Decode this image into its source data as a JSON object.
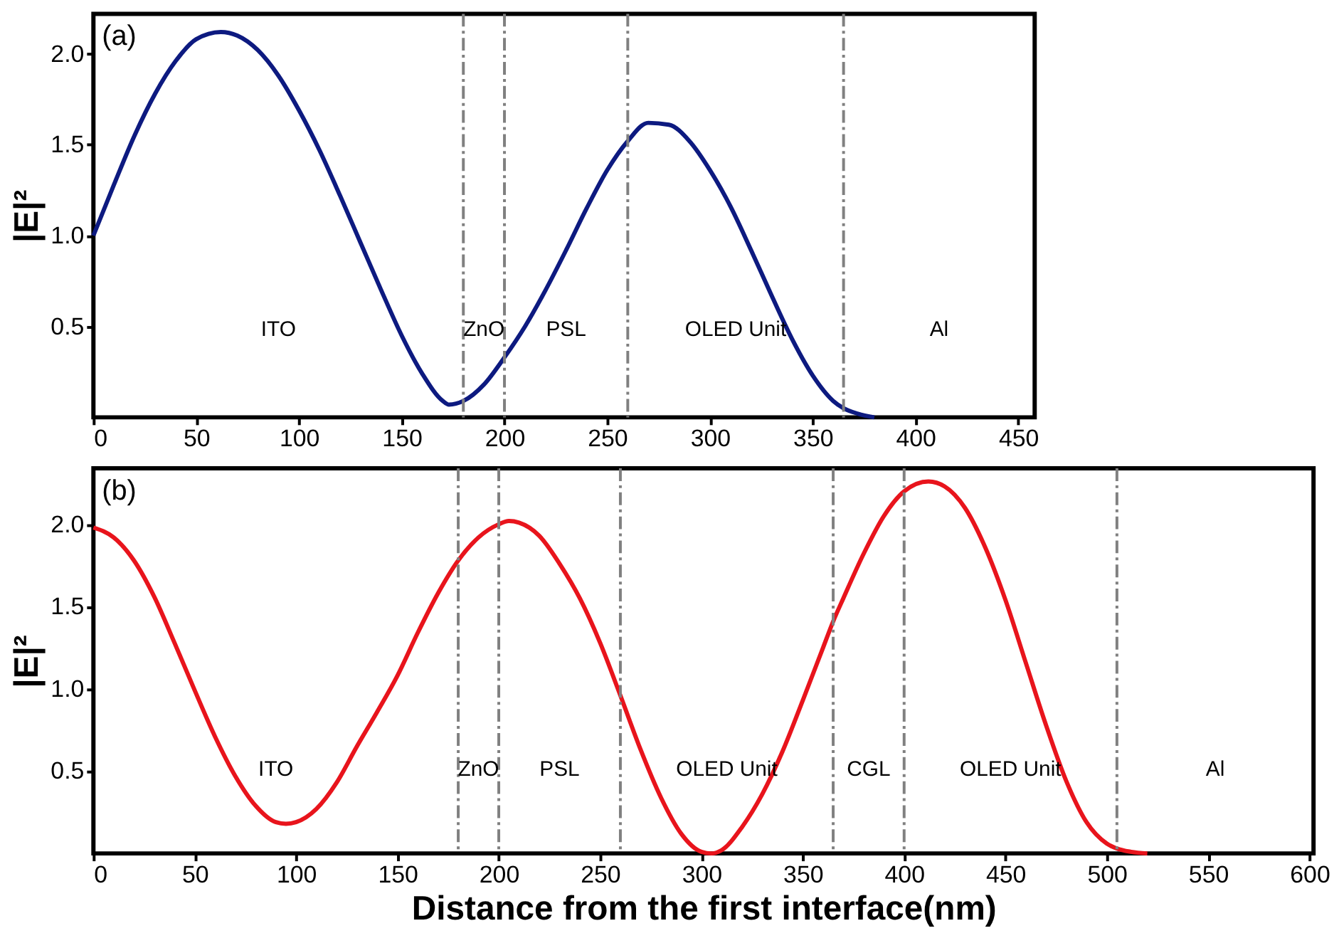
{
  "chart_data": [
    {
      "type": "line",
      "ylabel": "|E|²",
      "annotations": [
        "(a)",
        "ITO",
        "ZnO",
        "PSL",
        "OLED Unit",
        "Al"
      ],
      "x": [
        0,
        10,
        20,
        30,
        40,
        50,
        62,
        70,
        80,
        90,
        100,
        110,
        120,
        130,
        140,
        150,
        160,
        170,
        173,
        180,
        190,
        200,
        210,
        220,
        230,
        240,
        250,
        260,
        270,
        280,
        290,
        300,
        310,
        320,
        330,
        340,
        350,
        360,
        365,
        372,
        380
      ],
      "series": [
        {
          "color": "#0d1a80",
          "line_style": "solid",
          "values": [
            1.0,
            1.28,
            1.55,
            1.78,
            1.96,
            2.08,
            2.12,
            2.1,
            2.02,
            1.88,
            1.69,
            1.47,
            1.22,
            0.96,
            0.7,
            0.45,
            0.24,
            0.09,
            0.07,
            0.09,
            0.18,
            0.33,
            0.5,
            0.7,
            0.92,
            1.15,
            1.36,
            1.52,
            1.62,
            1.61,
            1.52,
            1.36,
            1.16,
            0.92,
            0.67,
            0.43,
            0.23,
            0.09,
            0.05,
            0.02,
            0.0
          ]
        }
      ],
      "xlim": [
        0,
        458
      ],
      "xticks": [
        0,
        50,
        100,
        150,
        200,
        250,
        300,
        350,
        400,
        450
      ],
      "ylim": [
        0,
        2.22
      ],
      "yticks": [
        {
          "value": 0.5,
          "label": "0.5"
        },
        {
          "value": 1,
          "label": "1.0"
        },
        {
          "value": 1.5,
          "label": "1.5"
        },
        {
          "value": 2,
          "label": "2.0"
        }
      ],
      "ref_lines": [
        {
          "axis": "x",
          "value": 180,
          "color": "#808080",
          "line_style": "dashdot"
        },
        {
          "axis": "x",
          "value": 200,
          "color": "#808080",
          "line_style": "dashdot"
        },
        {
          "axis": "x",
          "value": 260,
          "color": "#808080",
          "line_style": "dashdot"
        },
        {
          "axis": "x",
          "value": 365,
          "color": "#808080",
          "line_style": "dashdot"
        }
      ],
      "grid": false
    },
    {
      "type": "line",
      "ylabel": "|E|²",
      "xlabel": "Distance from the first interface(nm)",
      "annotations": [
        "(b)",
        "ITO",
        "ZnO",
        "PSL",
        "OLED Unit",
        "CGL",
        "OLED Unit",
        "Al"
      ],
      "x": [
        0,
        10,
        20,
        30,
        40,
        50,
        60,
        70,
        80,
        90,
        95,
        100,
        110,
        120,
        130,
        140,
        150,
        160,
        170,
        180,
        190,
        200,
        205,
        210,
        220,
        230,
        240,
        250,
        260,
        270,
        280,
        290,
        300,
        305,
        310,
        320,
        330,
        340,
        350,
        360,
        365,
        370,
        380,
        390,
        400,
        412,
        420,
        430,
        440,
        450,
        460,
        470,
        480,
        490,
        500,
        505,
        512,
        520
      ],
      "series": [
        {
          "color": "#e8141c",
          "line_style": "solid",
          "values": [
            1.98,
            1.92,
            1.78,
            1.56,
            1.28,
            0.99,
            0.71,
            0.47,
            0.29,
            0.19,
            0.18,
            0.19,
            0.27,
            0.43,
            0.65,
            0.86,
            1.08,
            1.34,
            1.58,
            1.78,
            1.92,
            2.0,
            2.02,
            2.01,
            1.93,
            1.76,
            1.55,
            1.28,
            0.96,
            0.63,
            0.34,
            0.12,
            0.01,
            0.0,
            0.02,
            0.16,
            0.36,
            0.62,
            0.93,
            1.25,
            1.41,
            1.55,
            1.82,
            2.05,
            2.2,
            2.26,
            2.23,
            2.1,
            1.86,
            1.54,
            1.16,
            0.78,
            0.44,
            0.19,
            0.06,
            0.03,
            0.01,
            0.0
          ]
        }
      ],
      "xlim": [
        0,
        602
      ],
      "xticks": [
        0,
        50,
        100,
        150,
        200,
        250,
        300,
        350,
        400,
        450,
        500,
        550,
        600
      ],
      "ylim": [
        0,
        2.34
      ],
      "yticks": [
        {
          "value": 0.5,
          "label": "0.5"
        },
        {
          "value": 1,
          "label": "1.0"
        },
        {
          "value": 1.5,
          "label": "1.5"
        },
        {
          "value": 2,
          "label": "2.0"
        }
      ],
      "ref_lines": [
        {
          "axis": "x",
          "value": 180,
          "color": "#808080",
          "line_style": "dashdot"
        },
        {
          "axis": "x",
          "value": 200,
          "color": "#808080",
          "line_style": "dashdot"
        },
        {
          "axis": "x",
          "value": 260,
          "color": "#808080",
          "line_style": "dashdot"
        },
        {
          "axis": "x",
          "value": 365,
          "color": "#808080",
          "line_style": "dashdot"
        },
        {
          "axis": "x",
          "value": 400,
          "color": "#808080",
          "line_style": "dashdot"
        },
        {
          "axis": "x",
          "value": 505,
          "color": "#808080",
          "line_style": "dashdot"
        }
      ],
      "grid": false
    }
  ]
}
